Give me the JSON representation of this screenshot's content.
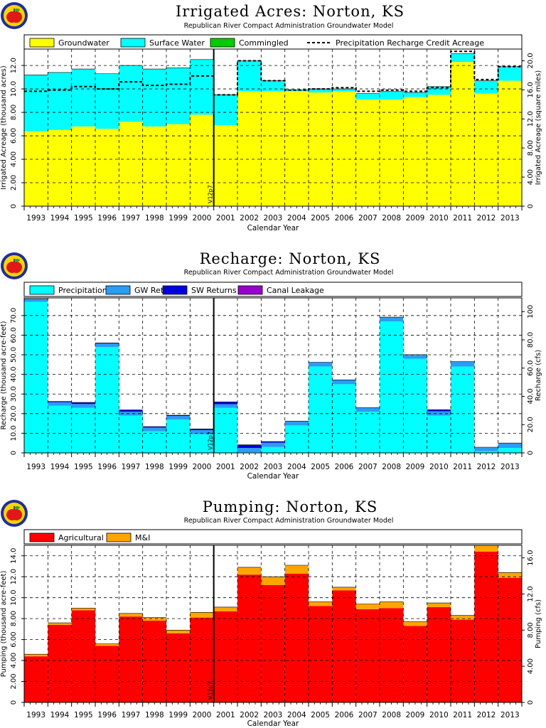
{
  "colors": {
    "groundwater": "#ffff00",
    "surface_water": "#00ffff",
    "commingled": "#00cc00",
    "precipitation": "#00ffff",
    "gw_returns": "#2a9df4",
    "sw_returns": "#0000e0",
    "canal_leakage": "#9900cc",
    "agricultural": "#ff0000",
    "mi": "#ffa500",
    "apple_red": "#e01818",
    "apple_ring": "#ffd400",
    "apple_bg": "#1d2f9a",
    "apple_leaf": "#3aa33a"
  },
  "apple_icon": "apple-logo-icon",
  "chart_data": [
    {
      "type": "bar",
      "title": "Irrigated Acres: Norton, KS",
      "subtitle": "Republican River Compact Administration Groundwater Model",
      "xlabel": "Calendar Year",
      "ylabel": "Irrigated Acreage (thousand acres)",
      "ylabel_right": "Irrigated Acreage (square miles)",
      "categories": [
        "1993",
        "1994",
        "1995",
        "1996",
        "1997",
        "1998",
        "1999",
        "2000",
        "2001",
        "2002",
        "2003",
        "2004",
        "2005",
        "2006",
        "2007",
        "2008",
        "2009",
        "2010",
        "2011",
        "2012",
        "2013"
      ],
      "ylim": [
        0,
        13.4
      ],
      "yticks": [
        "0",
        "2.00",
        "4.00",
        "6.00",
        "8.00",
        "10.0",
        "12.0"
      ],
      "yticks_right": [
        "0",
        "4.00",
        "8.00",
        "12.0",
        "16.0",
        "20.0"
      ],
      "marker_label": "V12p7",
      "marker_after_year": "2000",
      "legend": [
        "Groundwater",
        "Surface Water",
        "Commingled",
        "Precipitation Recharge Credit Acreage"
      ],
      "series": [
        {
          "name": "Groundwater",
          "values": [
            6.4,
            6.5,
            6.8,
            6.6,
            7.2,
            6.8,
            7.0,
            7.8,
            6.9,
            9.8,
            9.8,
            9.8,
            9.7,
            9.8,
            9.1,
            9.1,
            9.3,
            9.5,
            12.3,
            9.6,
            10.7
          ]
        },
        {
          "name": "Surface Water",
          "values": [
            4.8,
            4.9,
            4.9,
            4.7,
            4.8,
            4.9,
            4.8,
            4.7,
            2.6,
            2.6,
            0.9,
            0.1,
            0.3,
            0.2,
            0.5,
            0.7,
            0.4,
            0.7,
            0.7,
            1.1,
            1.2
          ]
        },
        {
          "name": "Commingled",
          "values": [
            0,
            0,
            0,
            0,
            0,
            0,
            0,
            0,
            0,
            0,
            0,
            0,
            0,
            0,
            0,
            0,
            0,
            0,
            0,
            0,
            0
          ]
        }
      ],
      "line_series": {
        "name": "Precipitation Recharge Credit Acreage",
        "values": [
          9.8,
          9.9,
          10.2,
          10.0,
          10.6,
          10.3,
          10.4,
          11.1,
          9.5,
          12.4,
          10.7,
          9.9,
          10.0,
          10.1,
          9.8,
          9.9,
          9.8,
          10.1,
          13.2,
          10.8,
          11.9
        ]
      }
    },
    {
      "type": "bar",
      "title": "Recharge: Norton, KS",
      "subtitle": "Republican River Compact Administration Groundwater Model",
      "xlabel": "Calendar Year",
      "ylabel": "Recharge (thousand acre-feet)",
      "ylabel_right": "Recharge (cfs)",
      "categories": [
        "1993",
        "1994",
        "1995",
        "1996",
        "1997",
        "1998",
        "1999",
        "2000",
        "2001",
        "2002",
        "2003",
        "2004",
        "2005",
        "2006",
        "2007",
        "2008",
        "2009",
        "2010",
        "2011",
        "2012",
        "2013"
      ],
      "ylim": [
        0,
        79
      ],
      "yticks": [
        "0",
        "10.0",
        "20.0",
        "30.0",
        "40.0",
        "50.0",
        "60.0",
        "70.0"
      ],
      "yticks_right": [
        "0",
        "20.0",
        "40.0",
        "60.0",
        "80.0",
        "100"
      ],
      "marker_label": "V12p7",
      "marker_after_year": "2000",
      "legend": [
        "Precipitation",
        "GW Returns",
        "SW Returns",
        "Canal Leakage"
      ],
      "series": [
        {
          "name": "Precipitation",
          "values": [
            77.0,
            24.0,
            23.0,
            54.0,
            19.0,
            11.0,
            17.0,
            9.5,
            23.0,
            0.3,
            3.0,
            14.0,
            44.0,
            35.0,
            21.0,
            67.0,
            48.0,
            19.0,
            44.0,
            0.8,
            2.5
          ]
        },
        {
          "name": "GW Returns",
          "values": [
            1.5,
            1.8,
            1.9,
            1.7,
            2.0,
            1.9,
            1.8,
            2.1,
            1.8,
            2.2,
            2.2,
            2.2,
            2.2,
            2.2,
            2.1,
            2.2,
            2.1,
            2.2,
            2.5,
            2.1,
            2.5
          ]
        },
        {
          "name": "SW Returns",
          "values": [
            0,
            0.4,
            0.8,
            0.3,
            0.9,
            0.5,
            0.4,
            0.6,
            1.2,
            1.6,
            0.6,
            0,
            0,
            0,
            0,
            0,
            0,
            0.8,
            0,
            0,
            0
          ]
        },
        {
          "name": "Canal Leakage",
          "values": [
            0,
            0,
            0,
            0,
            0,
            0,
            0,
            0,
            0,
            0,
            0,
            0,
            0,
            0,
            0,
            0,
            0,
            0,
            0,
            0,
            0
          ]
        }
      ]
    },
    {
      "type": "bar",
      "title": "Pumping: Norton, KS",
      "subtitle": "Republican River Compact Administration Groundwater Model",
      "xlabel": "Calendar Year",
      "ylabel": "Pumping (thousand acre-feet)",
      "ylabel_right": "Pumping (cfs)",
      "categories": [
        "1993",
        "1994",
        "1995",
        "1996",
        "1997",
        "1998",
        "1999",
        "2000",
        "2001",
        "2002",
        "2003",
        "2004",
        "2005",
        "2006",
        "2007",
        "2008",
        "2009",
        "2010",
        "2011",
        "2012",
        "2013"
      ],
      "ylim": [
        0,
        15
      ],
      "yticks": [
        "0",
        "2.00",
        "4.00",
        "6.00",
        "8.00",
        "10.0",
        "12.0",
        "14.0"
      ],
      "yticks_right": [
        "0",
        "4.00",
        "8.00",
        "12.0",
        "16.0"
      ],
      "marker_label": "V12p7",
      "marker_after_year": "2000",
      "legend": [
        "Agricultural",
        "M&I"
      ],
      "series": [
        {
          "name": "Agricultural",
          "values": [
            4.4,
            7.4,
            8.8,
            5.4,
            8.2,
            7.8,
            6.6,
            8.1,
            8.7,
            12.2,
            11.2,
            12.3,
            9.2,
            10.7,
            8.9,
            9.0,
            7.3,
            9.1,
            7.9,
            14.4,
            11.9
          ]
        },
        {
          "name": "M&I",
          "values": [
            0.2,
            0.2,
            0.2,
            0.2,
            0.3,
            0.3,
            0.3,
            0.5,
            0.4,
            0.7,
            0.8,
            0.8,
            0.4,
            0.3,
            0.5,
            0.6,
            0.4,
            0.4,
            0.4,
            0.6,
            0.5
          ]
        }
      ]
    }
  ]
}
